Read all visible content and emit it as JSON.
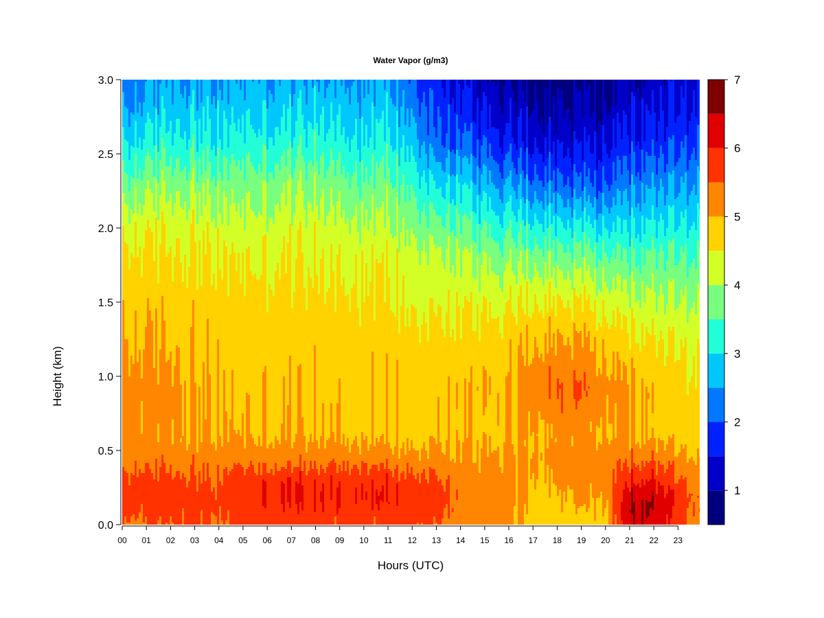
{
  "chart_data": {
    "type": "heatmap",
    "title": "Water Vapor (g/m3)",
    "xlabel": "Hours (UTC)",
    "ylabel": "Height (km)",
    "x_ticks": [
      "00",
      "01",
      "02",
      "03",
      "04",
      "05",
      "06",
      "07",
      "08",
      "09",
      "10",
      "11",
      "12",
      "13",
      "14",
      "15",
      "16",
      "17",
      "18",
      "19",
      "20",
      "21",
      "22",
      "23"
    ],
    "xlim": [
      0,
      23.9
    ],
    "y_ticks": [
      "0.0",
      "0.5",
      "1.0",
      "1.5",
      "2.0",
      "2.5",
      "3.0"
    ],
    "ylim": [
      0,
      3.0
    ],
    "colorbar": {
      "ticks": [
        "1",
        "2",
        "3",
        "4",
        "5",
        "6",
        "7"
      ],
      "range": [
        0.5,
        7.0
      ],
      "levels": [
        0.5,
        1.0,
        1.5,
        2.0,
        2.5,
        3.0,
        3.5,
        4.0,
        4.5,
        5.0,
        5.5,
        6.0,
        6.5,
        7.0
      ],
      "colors": [
        "#00007f",
        "#0000c8",
        "#0022ff",
        "#0078ff",
        "#00c8ff",
        "#22ffd8",
        "#78ff80",
        "#d4ff26",
        "#ffd200",
        "#ff8600",
        "#ff3200",
        "#e00000",
        "#7f0000"
      ]
    },
    "profile_heights_km": [
      0.0,
      0.15,
      0.3,
      0.42,
      0.6,
      0.9,
      1.2,
      1.5,
      1.8,
      2.0,
      2.3,
      2.6,
      2.9,
      3.0
    ],
    "profiles": [
      {
        "hour": 0,
        "values": [
          5.4,
          5.7,
          5.6,
          5.3,
          5.1,
          5.2,
          5.0,
          4.8,
          4.6,
          4.3,
          3.6,
          2.9,
          2.2,
          2.1
        ]
      },
      {
        "hour": 2,
        "values": [
          5.5,
          5.8,
          5.7,
          5.4,
          5.1,
          5.2,
          5.0,
          4.8,
          4.6,
          4.4,
          3.9,
          3.2,
          2.7,
          2.6
        ]
      },
      {
        "hour": 3,
        "values": [
          5.5,
          5.8,
          5.6,
          5.4,
          5.0,
          5.0,
          4.9,
          4.8,
          4.6,
          4.4,
          3.9,
          3.2,
          2.7,
          2.5
        ]
      },
      {
        "hour": 4,
        "values": [
          5.4,
          5.6,
          5.5,
          5.3,
          5.0,
          4.9,
          4.8,
          4.7,
          4.5,
          4.2,
          3.7,
          3.0,
          2.6,
          2.4
        ]
      },
      {
        "hour": 5,
        "values": [
          5.6,
          5.9,
          5.9,
          5.4,
          5.0,
          4.9,
          4.8,
          4.7,
          4.5,
          4.2,
          3.8,
          3.2,
          2.7,
          2.6
        ]
      },
      {
        "hour": 7,
        "values": [
          5.6,
          6.0,
          6.0,
          5.4,
          5.0,
          4.9,
          4.8,
          4.7,
          4.5,
          4.3,
          3.9,
          3.2,
          2.7,
          2.6
        ]
      },
      {
        "hour": 8,
        "values": [
          5.6,
          6.0,
          6.0,
          5.4,
          5.0,
          4.9,
          4.8,
          4.7,
          4.5,
          4.3,
          3.9,
          3.3,
          2.8,
          2.6
        ]
      },
      {
        "hour": 10,
        "values": [
          5.6,
          6.0,
          5.9,
          5.3,
          4.9,
          4.9,
          4.8,
          4.6,
          4.4,
          4.1,
          3.6,
          3.0,
          2.6,
          2.5
        ]
      },
      {
        "hour": 11,
        "values": [
          5.6,
          6.0,
          5.9,
          5.3,
          4.9,
          4.9,
          4.8,
          4.6,
          4.4,
          4.1,
          3.7,
          3.1,
          2.7,
          2.5
        ]
      },
      {
        "hour": 12,
        "values": [
          5.6,
          5.9,
          5.8,
          5.3,
          4.9,
          4.9,
          4.8,
          4.5,
          4.3,
          4.0,
          3.5,
          2.9,
          2.3,
          2.2
        ]
      },
      {
        "hour": 13,
        "values": [
          5.5,
          5.8,
          5.6,
          5.2,
          4.9,
          4.9,
          4.7,
          4.4,
          4.1,
          3.7,
          2.9,
          2.0,
          1.8,
          1.6
        ]
      },
      {
        "hour": 14,
        "values": [
          5.2,
          5.4,
          5.3,
          5.1,
          4.9,
          4.9,
          4.7,
          4.4,
          4.0,
          3.6,
          2.9,
          2.0,
          1.5,
          1.3
        ]
      },
      {
        "hour": 15,
        "values": [
          5.2,
          5.3,
          5.2,
          5.1,
          4.9,
          5.0,
          4.8,
          4.4,
          3.9,
          3.4,
          2.6,
          1.8,
          1.3,
          1.1
        ]
      },
      {
        "hour": 16,
        "values": [
          5.1,
          5.2,
          5.2,
          5.1,
          5.0,
          5.0,
          4.8,
          4.4,
          3.8,
          3.3,
          2.4,
          1.5,
          1.1,
          0.9
        ]
      },
      {
        "hour": 17,
        "values": [
          4.8,
          4.9,
          5.0,
          5.1,
          5.0,
          5.4,
          5.0,
          4.5,
          3.8,
          3.2,
          2.2,
          1.4,
          1.0,
          0.8
        ]
      },
      {
        "hour": 18,
        "values": [
          4.8,
          4.9,
          5.1,
          5.2,
          5.1,
          5.5,
          5.1,
          4.5,
          3.7,
          3.1,
          2.1,
          1.3,
          0.9,
          0.7
        ]
      },
      {
        "hour": 19,
        "values": [
          4.8,
          5.0,
          5.2,
          5.3,
          5.1,
          5.5,
          5.1,
          4.5,
          3.7,
          3.1,
          2.0,
          1.3,
          0.9,
          0.7
        ]
      },
      {
        "hour": 20,
        "values": [
          4.9,
          5.0,
          5.2,
          5.3,
          5.0,
          5.2,
          4.9,
          4.3,
          3.6,
          3.0,
          2.0,
          1.4,
          0.9,
          0.8
        ]
      },
      {
        "hour": 21,
        "values": [
          6.4,
          6.6,
          6.0,
          5.5,
          5.0,
          5.1,
          4.7,
          4.2,
          3.5,
          3.0,
          2.3,
          1.6,
          1.2,
          1.1
        ]
      },
      {
        "hour": 22,
        "values": [
          6.4,
          6.5,
          6.0,
          5.5,
          4.9,
          4.9,
          4.6,
          4.1,
          3.6,
          3.1,
          2.4,
          1.7,
          1.3,
          1.2
        ]
      },
      {
        "hour": 23.9,
        "values": [
          5.1,
          5.4,
          5.2,
          5.0,
          4.7,
          4.6,
          4.4,
          4.0,
          3.5,
          3.1,
          2.5,
          1.9,
          1.5,
          1.4
        ]
      }
    ]
  }
}
